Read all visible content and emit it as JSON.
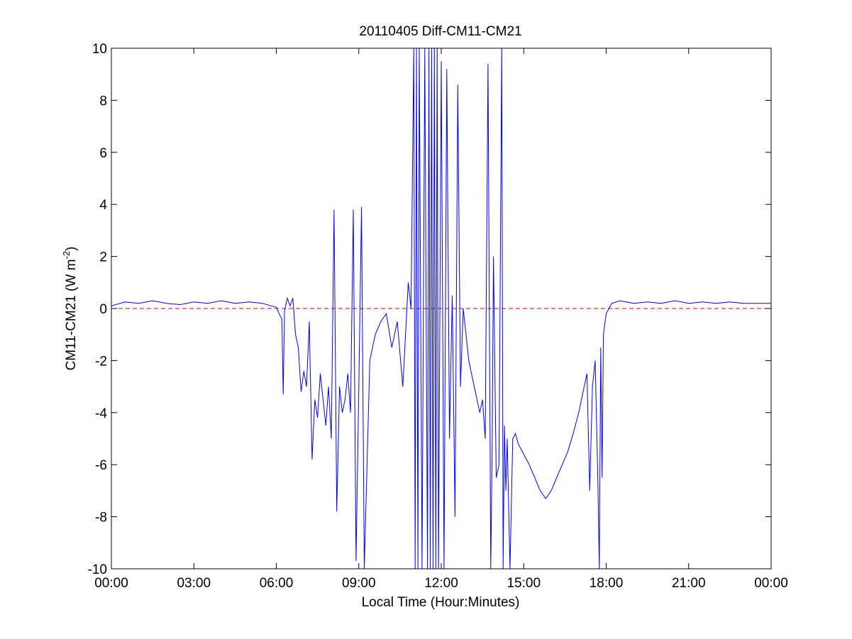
{
  "chart_data": {
    "type": "line",
    "title": "20110405 Diff-CM11-CM21",
    "xlabel": "Local Time (Hour:Minutes)",
    "ylabel": {
      "text": "CM11-CM21 (W m",
      "superscript": "-2",
      "suffix": ")"
    },
    "xlim": [
      0,
      24
    ],
    "ylim": [
      -10,
      10
    ],
    "x_ticks": [
      {
        "value": 0,
        "label": "00:00"
      },
      {
        "value": 3,
        "label": "03:00"
      },
      {
        "value": 6,
        "label": "06:00"
      },
      {
        "value": 9,
        "label": "09:00"
      },
      {
        "value": 12,
        "label": "12:00"
      },
      {
        "value": 15,
        "label": "15:00"
      },
      {
        "value": 18,
        "label": "18:00"
      },
      {
        "value": 21,
        "label": "21:00"
      },
      {
        "value": 24,
        "label": "00:00"
      }
    ],
    "y_ticks": [
      {
        "value": -10,
        "label": "-10"
      },
      {
        "value": -8,
        "label": "-8"
      },
      {
        "value": -6,
        "label": "-6"
      },
      {
        "value": -4,
        "label": "-4"
      },
      {
        "value": -2,
        "label": "-2"
      },
      {
        "value": 0,
        "label": "0"
      },
      {
        "value": 2,
        "label": "2"
      },
      {
        "value": 4,
        "label": "4"
      },
      {
        "value": 6,
        "label": "6"
      },
      {
        "value": 8,
        "label": "8"
      },
      {
        "value": 10,
        "label": "10"
      }
    ],
    "grid": false,
    "reference_line": {
      "y": 0,
      "color": "#cc0000",
      "style": "dashed"
    },
    "series": [
      {
        "color": "#0000ff",
        "x": [
          0.0,
          0.5,
          1.0,
          1.5,
          2.0,
          2.5,
          3.0,
          3.5,
          4.0,
          4.5,
          5.0,
          5.5,
          5.8,
          6.0,
          6.1,
          6.2,
          6.25,
          6.3,
          6.4,
          6.5,
          6.6,
          6.7,
          6.8,
          6.9,
          7.0,
          7.1,
          7.2,
          7.3,
          7.4,
          7.5,
          7.6,
          7.7,
          7.8,
          7.9,
          8.0,
          8.1,
          8.2,
          8.3,
          8.4,
          8.5,
          8.6,
          8.7,
          8.8,
          8.9,
          9.0,
          9.1,
          9.2,
          9.4,
          9.6,
          9.8,
          10.0,
          10.2,
          10.4,
          10.6,
          10.8,
          10.9,
          11.0,
          11.05,
          11.1,
          11.15,
          11.2,
          11.3,
          11.4,
          11.5,
          11.55,
          11.6,
          11.65,
          11.7,
          11.75,
          11.8,
          11.85,
          11.9,
          12.0,
          12.1,
          12.2,
          12.3,
          12.4,
          12.5,
          12.6,
          12.7,
          12.8,
          13.0,
          13.2,
          13.4,
          13.5,
          13.6,
          13.7,
          13.8,
          13.85,
          13.9,
          14.0,
          14.1,
          14.2,
          14.25,
          14.3,
          14.35,
          14.4,
          14.5,
          14.6,
          14.7,
          14.8,
          15.0,
          15.2,
          15.4,
          15.6,
          15.8,
          16.0,
          16.2,
          16.4,
          16.6,
          16.8,
          17.0,
          17.2,
          17.3,
          17.4,
          17.5,
          17.6,
          17.7,
          17.75,
          17.8,
          17.85,
          17.9,
          18.0,
          18.2,
          18.5,
          19.0,
          19.5,
          20.0,
          20.5,
          21.0,
          21.5,
          22.0,
          22.5,
          23.0,
          23.5,
          24.0
        ],
        "y": [
          0.1,
          0.25,
          0.2,
          0.3,
          0.2,
          0.15,
          0.25,
          0.2,
          0.3,
          0.2,
          0.25,
          0.2,
          0.1,
          0.05,
          -0.2,
          -0.4,
          -3.3,
          -0.1,
          0.4,
          0.1,
          0.4,
          -1.0,
          -1.5,
          -3.2,
          -2.4,
          -3.0,
          -0.5,
          -5.8,
          -3.5,
          -4.2,
          -2.5,
          -3.5,
          -4.5,
          -3.0,
          -5.0,
          3.8,
          -7.8,
          -3.0,
          -4.0,
          -3.5,
          -2.5,
          -4.0,
          3.8,
          -9.7,
          -3.0,
          3.9,
          -10.0,
          -2.0,
          -1.0,
          -0.5,
          -0.2,
          -1.5,
          -0.5,
          -3.0,
          1.0,
          0.0,
          10.0,
          -10.0,
          10.0,
          -10.0,
          10.0,
          -10.0,
          10.0,
          -10.0,
          10.0,
          -10.0,
          10.0,
          -10.0,
          10.0,
          -10.0,
          10.0,
          -10.0,
          9.5,
          -10.0,
          9.2,
          -5.0,
          0.5,
          -8.0,
          8.6,
          -3.0,
          0.0,
          -2.0,
          -3.0,
          -4.0,
          -3.5,
          -5.0,
          9.4,
          -10.0,
          -5.5,
          2.0,
          -6.5,
          -6.0,
          10.0,
          -10.0,
          -4.5,
          -7.0,
          -5.0,
          -10.0,
          -5.0,
          -4.8,
          -5.2,
          -5.6,
          -6.0,
          -6.5,
          -7.0,
          -7.3,
          -7.0,
          -6.5,
          -6.0,
          -5.5,
          -4.8,
          -4.0,
          -3.0,
          -2.5,
          -7.0,
          -3.0,
          -2.0,
          -6.8,
          -10.0,
          -1.5,
          -6.5,
          -1.0,
          -0.2,
          0.2,
          0.3,
          0.2,
          0.25,
          0.2,
          0.3,
          0.2,
          0.25,
          0.2,
          0.25,
          0.2,
          0.2,
          0.2
        ]
      }
    ]
  }
}
